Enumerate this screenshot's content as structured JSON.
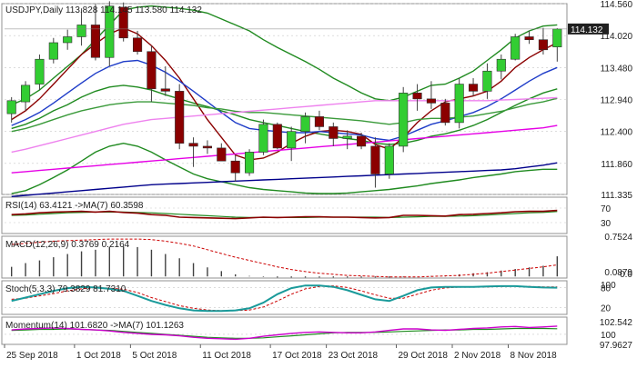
{
  "chart_data": {
    "type": "candlestick",
    "symbol": "USDJPY",
    "timeframe": "Daily",
    "header": "USDJPY,Daily  113.828 114.145 113.580 114.132",
    "ohlc_readout": [
      113.828,
      114.145,
      113.58,
      114.132
    ],
    "last_price": "114.132",
    "price_axis": {
      "ylim": [
        111.335,
        114.56
      ],
      "ticks": [
        "114.560",
        "114.020",
        "113.480",
        "112.940",
        "112.400",
        "111.860",
        "111.335"
      ]
    },
    "dates": [
      "25 Sep 2018",
      "1 Oct 2018",
      "5 Oct 2018",
      "11 Oct 2018",
      "17 Oct 2018",
      "23 Oct 2018",
      "29 Oct 2018",
      "2 Nov 2018",
      "8 Nov 2018"
    ],
    "candles": [
      [
        112.7,
        112.98,
        112.55,
        112.92
      ],
      [
        112.9,
        113.25,
        112.75,
        113.18
      ],
      [
        113.2,
        113.7,
        113.1,
        113.62
      ],
      [
        113.62,
        113.98,
        113.55,
        113.9
      ],
      [
        113.9,
        114.12,
        113.78,
        114.0
      ],
      [
        114.0,
        114.48,
        113.85,
        114.2
      ],
      [
        114.2,
        114.55,
        113.6,
        113.65
      ],
      [
        113.65,
        114.6,
        113.5,
        114.52
      ],
      [
        114.5,
        114.58,
        113.92,
        113.98
      ],
      [
        113.98,
        114.1,
        113.7,
        113.75
      ],
      [
        113.75,
        113.85,
        112.9,
        113.12
      ],
      [
        113.12,
        113.5,
        113.0,
        113.08
      ],
      [
        113.08,
        113.2,
        112.1,
        112.2
      ],
      [
        112.2,
        112.3,
        111.8,
        112.15
      ],
      [
        112.15,
        112.25,
        112.02,
        112.12
      ],
      [
        112.12,
        112.2,
        111.9,
        111.9
      ],
      [
        111.9,
        112.0,
        111.55,
        111.7
      ],
      [
        111.7,
        112.1,
        111.65,
        112.05
      ],
      [
        112.05,
        112.6,
        112.0,
        112.52
      ],
      [
        112.52,
        112.55,
        112.1,
        112.12
      ],
      [
        112.12,
        112.48,
        111.9,
        112.4
      ],
      [
        112.4,
        112.72,
        112.2,
        112.65
      ],
      [
        112.65,
        112.75,
        112.42,
        112.48
      ],
      [
        112.48,
        112.55,
        112.15,
        112.28
      ],
      [
        112.28,
        112.42,
        112.1,
        112.32
      ],
      [
        112.32,
        112.38,
        112.1,
        112.15
      ],
      [
        112.15,
        112.3,
        111.45,
        111.68
      ],
      [
        111.68,
        112.2,
        111.6,
        112.15
      ],
      [
        112.15,
        113.15,
        112.05,
        113.05
      ],
      [
        113.05,
        113.2,
        112.75,
        112.95
      ],
      [
        112.95,
        113.25,
        112.78,
        112.88
      ],
      [
        112.88,
        112.95,
        112.5,
        112.55
      ],
      [
        112.55,
        113.3,
        112.45,
        113.2
      ],
      [
        113.2,
        113.3,
        113.0,
        113.08
      ],
      [
        113.08,
        113.55,
        112.95,
        113.42
      ],
      [
        113.42,
        113.7,
        113.28,
        113.62
      ],
      [
        113.62,
        114.05,
        113.6,
        114.0
      ],
      [
        114.0,
        114.1,
        113.88,
        113.95
      ],
      [
        113.95,
        114.15,
        113.7,
        113.78
      ],
      [
        113.828,
        114.145,
        113.58,
        114.132
      ]
    ],
    "overlays": [
      {
        "name": "bb_upper",
        "color": "#1f8a1f",
        "values": [
          112.85,
          112.95,
          113.1,
          113.3,
          113.5,
          113.7,
          113.95,
          114.2,
          114.45,
          114.5,
          114.52,
          114.5,
          114.48,
          114.45,
          114.4,
          114.3,
          114.2,
          114.1,
          113.95,
          113.82,
          113.7,
          113.58,
          113.45,
          113.3,
          113.18,
          113.05,
          112.95,
          112.92,
          112.98,
          113.08,
          113.18,
          113.2,
          113.3,
          113.42,
          113.6,
          113.78,
          113.98,
          114.1,
          114.18,
          114.2
        ]
      },
      {
        "name": "bb_mid",
        "color": "#1f8a1f",
        "values": [
          112.45,
          112.52,
          112.62,
          112.75,
          112.85,
          112.98,
          113.08,
          113.15,
          113.18,
          113.15,
          113.1,
          113.02,
          112.95,
          112.88,
          112.82,
          112.75,
          112.68,
          112.6,
          112.55,
          112.5,
          112.45,
          112.4,
          112.36,
          112.32,
          112.28,
          112.25,
          112.2,
          112.18,
          112.2,
          112.25,
          112.32,
          112.36,
          112.42,
          112.5,
          112.6,
          112.72,
          112.84,
          112.95,
          113.05,
          113.12
        ]
      },
      {
        "name": "bb_lower",
        "color": "#1f8a1f",
        "values": [
          111.35,
          111.4,
          111.5,
          111.62,
          111.75,
          111.9,
          112.05,
          112.15,
          112.2,
          112.15,
          112.05,
          111.92,
          111.8,
          111.68,
          111.6,
          111.55,
          111.5,
          111.45,
          111.42,
          111.4,
          111.38,
          111.36,
          111.35,
          111.35,
          111.36,
          111.38,
          111.4,
          111.42,
          111.45,
          111.48,
          111.52,
          111.55,
          111.58,
          111.62,
          111.65,
          111.68,
          111.72,
          111.74,
          111.76,
          111.76
        ]
      },
      {
        "name": "sma5",
        "color": "#8b0000",
        "values": [
          112.6,
          112.75,
          112.95,
          113.2,
          113.45,
          113.7,
          113.88,
          114.05,
          114.15,
          114.05,
          113.85,
          113.6,
          113.3,
          112.95,
          112.6,
          112.3,
          112.0,
          111.92,
          111.95,
          112.05,
          112.2,
          112.32,
          112.4,
          112.42,
          112.4,
          112.35,
          112.18,
          112.1,
          112.3,
          112.55,
          112.75,
          112.9,
          112.95,
          113.0,
          113.08,
          113.25,
          113.48,
          113.65,
          113.78,
          113.9
        ]
      },
      {
        "name": "ema10",
        "color": "#1e3cc8",
        "values": [
          112.5,
          112.6,
          112.72,
          112.88,
          113.05,
          113.22,
          113.38,
          113.5,
          113.58,
          113.6,
          113.52,
          113.4,
          113.25,
          113.08,
          112.9,
          112.72,
          112.55,
          112.45,
          112.42,
          112.4,
          112.38,
          112.38,
          112.4,
          112.38,
          112.36,
          112.34,
          112.28,
          112.25,
          112.32,
          112.42,
          112.52,
          112.58,
          112.65,
          112.72,
          112.82,
          112.95,
          113.1,
          113.25,
          113.38,
          113.48
        ]
      },
      {
        "name": "ema20",
        "color": "#3a9a3a",
        "values": [
          112.4,
          112.45,
          112.52,
          112.6,
          112.68,
          112.75,
          112.8,
          112.85,
          112.88,
          112.9,
          112.9,
          112.88,
          112.86,
          112.84,
          112.8,
          112.78,
          112.74,
          112.72,
          112.72,
          112.7,
          112.68,
          112.66,
          112.64,
          112.62,
          112.6,
          112.58,
          112.55,
          112.52,
          112.55,
          112.6,
          112.62,
          112.62,
          112.64,
          112.66,
          112.7,
          112.74,
          112.8,
          112.86,
          112.9,
          112.96
        ]
      },
      {
        "name": "ema55",
        "color": "#ee82ee",
        "values": [
          112.05,
          112.1,
          112.16,
          112.22,
          112.28,
          112.34,
          112.4,
          112.46,
          112.52,
          112.56,
          112.6,
          112.62,
          112.64,
          112.66,
          112.68,
          112.7,
          112.72,
          112.74,
          112.76,
          112.78,
          112.8,
          112.82,
          112.84,
          112.86,
          112.88,
          112.9,
          112.92,
          112.92,
          112.92,
          112.92,
          112.92,
          112.92,
          112.92,
          112.92,
          112.92,
          112.93,
          112.94,
          112.95,
          112.96,
          112.97
        ]
      },
      {
        "name": "ema100",
        "color": "#e600e6",
        "values": [
          111.7,
          111.72,
          111.74,
          111.76,
          111.78,
          111.8,
          111.82,
          111.84,
          111.86,
          111.88,
          111.9,
          111.92,
          111.94,
          111.96,
          111.98,
          112.0,
          112.02,
          112.04,
          112.06,
          112.08,
          112.1,
          112.12,
          112.14,
          112.16,
          112.18,
          112.2,
          112.22,
          112.24,
          112.26,
          112.28,
          112.3,
          112.32,
          112.34,
          112.36,
          112.38,
          112.4,
          112.42,
          112.44,
          112.46,
          112.5
        ]
      },
      {
        "name": "ema200",
        "color": "#00008b",
        "values": [
          111.3,
          111.32,
          111.34,
          111.36,
          111.38,
          111.4,
          111.42,
          111.44,
          111.46,
          111.48,
          111.5,
          111.51,
          111.52,
          111.53,
          111.54,
          111.55,
          111.56,
          111.57,
          111.58,
          111.59,
          111.6,
          111.61,
          111.62,
          111.63,
          111.64,
          111.65,
          111.66,
          111.67,
          111.68,
          111.69,
          111.7,
          111.71,
          111.72,
          111.73,
          111.74,
          111.75,
          111.77,
          111.8,
          111.83,
          111.87
        ]
      }
    ],
    "rsi": {
      "label": "RSI(14) 63.4121 ->MA(7) 60.3598",
      "ylim": [
        0,
        100
      ],
      "ticks": [
        "70",
        "30"
      ],
      "line_color": "#8b0000",
      "ma_color": "#1f8a1f",
      "values": [
        52,
        54,
        57,
        59,
        60,
        61,
        59,
        61,
        58,
        56,
        52,
        50,
        45,
        44,
        43,
        42,
        41,
        43,
        45,
        44,
        45,
        46,
        46,
        45,
        45,
        44,
        43,
        44,
        50,
        50,
        49,
        48,
        52,
        53,
        55,
        57,
        60,
        61,
        61,
        63.4
      ],
      "ma": [
        50,
        51,
        53,
        55,
        57,
        58,
        59,
        59,
        59,
        58,
        57,
        55,
        53,
        51,
        49,
        47,
        45,
        44,
        44,
        44,
        44,
        44,
        45,
        45,
        45,
        45,
        45,
        44,
        45,
        46,
        47,
        47,
        48,
        49,
        51,
        53,
        55,
        57,
        58,
        60.4
      ]
    },
    "macd": {
      "label": "MACD(12,26,9) 0.3769 0.2164",
      "ylim": [
        -0.03,
        0.7524
      ],
      "ticks": [
        "0.7524",
        "0.0879",
        "0.0"
      ],
      "hist_color": "#404040",
      "signal_color": "#cc0000",
      "hist": [
        0.18,
        0.25,
        0.3,
        0.36,
        0.42,
        0.47,
        0.5,
        0.55,
        0.56,
        0.55,
        0.5,
        0.42,
        0.34,
        0.25,
        0.17,
        0.1,
        0.04,
        0.01,
        -0.01,
        -0.02,
        -0.02,
        -0.02,
        -0.02,
        -0.02,
        -0.02,
        -0.02,
        -0.02,
        -0.02,
        -0.01,
        0.0,
        0.01,
        0.02,
        0.04,
        0.06,
        0.08,
        0.11,
        0.14,
        0.17,
        0.2,
        0.377
      ],
      "signal": [
        0.6,
        0.62,
        0.64,
        0.66,
        0.67,
        0.68,
        0.69,
        0.7,
        0.7,
        0.7,
        0.69,
        0.66,
        0.62,
        0.57,
        0.5,
        0.43,
        0.36,
        0.3,
        0.24,
        0.18,
        0.13,
        0.09,
        0.06,
        0.04,
        0.02,
        0.01,
        0.0,
        -0.01,
        -0.01,
        -0.01,
        0.0,
        0.01,
        0.02,
        0.04,
        0.06,
        0.09,
        0.12,
        0.15,
        0.18,
        0.216
      ]
    },
    "stoch": {
      "label": "Stoch(5,3,3) 79.3829 81.7310",
      "ylim": [
        0,
        100
      ],
      "ticks": [
        "100",
        "80",
        "20"
      ],
      "k_color": "#1a9a9a",
      "d_color": "#cc0000",
      "k": [
        40,
        50,
        60,
        70,
        78,
        82,
        80,
        76,
        70,
        55,
        40,
        28,
        18,
        12,
        10,
        10,
        12,
        18,
        35,
        60,
        78,
        86,
        86,
        82,
        72,
        58,
        45,
        40,
        55,
        72,
        80,
        82,
        82,
        82,
        83,
        84,
        84,
        82,
        80,
        79.4
      ],
      "d": [
        45,
        48,
        55,
        62,
        70,
        76,
        80,
        78,
        75,
        65,
        50,
        38,
        26,
        18,
        13,
        11,
        11,
        13,
        22,
        40,
        60,
        76,
        83,
        85,
        80,
        70,
        58,
        48,
        48,
        60,
        72,
        79,
        81,
        82,
        82,
        83,
        84,
        83,
        82,
        81.7
      ]
    },
    "momentum": {
      "label": "Momentum(14) 101.6820 ->MA(7) 101.1263",
      "ylim": [
        97.9627,
        103.5
      ],
      "ticks": [
        "102.542",
        "100",
        "97.9627"
      ],
      "line_color": "#cc00cc",
      "ma_color": "#1f8a1f",
      "values": [
        100.9,
        101.1,
        101.2,
        101.3,
        101.2,
        101.0,
        100.9,
        100.7,
        100.4,
        100.2,
        100.0,
        99.9,
        99.7,
        99.4,
        99.2,
        99.1,
        99.0,
        99.2,
        99.6,
        99.9,
        100.2,
        100.4,
        100.5,
        100.4,
        100.3,
        100.3,
        100.5,
        100.8,
        101.1,
        101.1,
        100.9,
        100.8,
        101.0,
        101.2,
        101.3,
        101.5,
        101.6,
        101.4,
        101.5,
        101.68
      ],
      "ma": [
        100.8,
        100.9,
        101.0,
        101.0,
        101.1,
        101.0,
        100.9,
        100.8,
        100.6,
        100.4,
        100.2,
        100.0,
        99.8,
        99.6,
        99.4,
        99.3,
        99.2,
        99.2,
        99.3,
        99.5,
        99.7,
        99.9,
        100.1,
        100.3,
        100.4,
        100.4,
        100.4,
        100.5,
        100.6,
        100.7,
        100.8,
        100.9,
        100.9,
        101.0,
        101.0,
        101.1,
        101.2,
        101.2,
        101.2,
        101.13
      ]
    }
  },
  "colors": {
    "bull_candle": "#32cd32",
    "bear_candle": "#8b0000",
    "wick": "#404040",
    "grid": "#c8c8c8",
    "axis_text": "#202020",
    "last_price_bg": "#202020",
    "last_price_fg": "#ffffff"
  }
}
